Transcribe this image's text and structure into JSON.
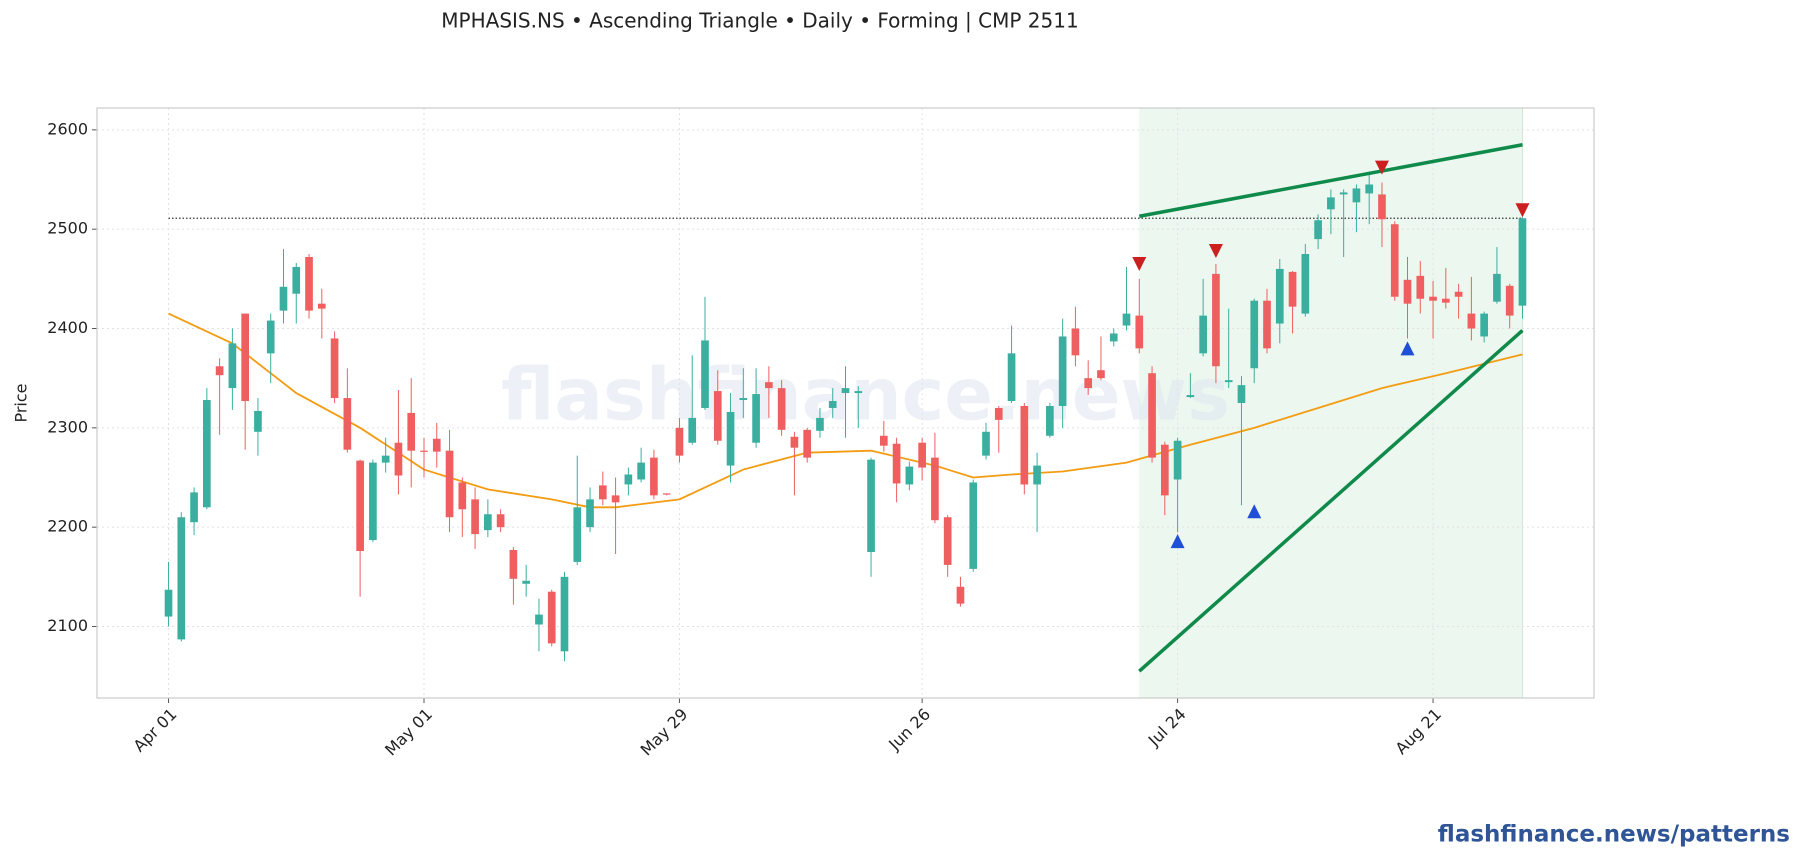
{
  "chart_data": {
    "type": "candlestick",
    "title": "MPHASIS.NS  •  Ascending Triangle  •  Daily  •  Forming  |  CMP 2511",
    "y_label": "Price",
    "watermark": "flashfinance.news",
    "footer": "flashfinance.news/patterns",
    "xlim": [
      -5.6,
      111.6
    ],
    "xticks": [
      {
        "value": 0,
        "label": "Apr 01"
      },
      {
        "value": 20,
        "label": "May 01"
      },
      {
        "value": 40,
        "label": "May 29"
      },
      {
        "value": 59,
        "label": "Jun 26"
      },
      {
        "value": 79,
        "label": "Jul 24"
      },
      {
        "value": 99,
        "label": "Aug 21"
      }
    ],
    "ylim": [
      2028,
      2622
    ],
    "yticks": [
      2100,
      2200,
      2300,
      2400,
      2500,
      2600
    ],
    "grid": true,
    "up_color": "#3aaf9f",
    "down_color": "#ef5f5f",
    "open": [
      2110,
      2087,
      2205,
      2220,
      2362,
      2340,
      2415,
      2296,
      2375,
      2418,
      2435,
      2472,
      2425,
      2390,
      2330,
      2267,
      2187,
      2265,
      2285,
      2315,
      2277,
      2289,
      2277,
      2245,
      2228,
      2197,
      2213,
      2177,
      2143,
      2102,
      2135,
      2075,
      2165,
      2200,
      2242,
      2232,
      2243,
      2248,
      2270,
      2234,
      2300,
      2285,
      2320,
      2337,
      2262,
      2328,
      2285,
      2346,
      2340,
      2291,
      2298,
      2297,
      2320,
      2335,
      2335,
      2175,
      2292,
      2284,
      2243,
      2285,
      2270,
      2210,
      2140,
      2158,
      2272,
      2320,
      2327,
      2322,
      2243,
      2292,
      2322,
      2400,
      2350,
      2358,
      2387,
      2403,
      2413,
      2355,
      2283,
      2248,
      2331,
      2375,
      2455,
      2346,
      2325,
      2360,
      2428,
      2405,
      2457,
      2415,
      2490,
      2520,
      2535,
      2527,
      2536,
      2535,
      2505,
      2449,
      2453,
      2432,
      2430,
      2437,
      2415,
      2392,
      2427,
      2443,
      2423
    ],
    "high": [
      2165,
      2215,
      2240,
      2340,
      2370,
      2400,
      2415,
      2330,
      2415,
      2480,
      2466,
      2475,
      2440,
      2397,
      2360,
      2268,
      2268,
      2290,
      2338,
      2350,
      2290,
      2305,
      2298,
      2250,
      2240,
      2228,
      2218,
      2180,
      2162,
      2128,
      2137,
      2155,
      2272,
      2240,
      2256,
      2250,
      2260,
      2280,
      2278,
      2234,
      2310,
      2373,
      2432,
      2358,
      2335,
      2360,
      2360,
      2362,
      2348,
      2296,
      2300,
      2320,
      2340,
      2362,
      2342,
      2270,
      2307,
      2290,
      2266,
      2290,
      2295,
      2212,
      2150,
      2248,
      2305,
      2322,
      2403,
      2325,
      2275,
      2325,
      2410,
      2422,
      2368,
      2392,
      2400,
      2462,
      2450,
      2362,
      2286,
      2290,
      2355,
      2450,
      2465,
      2420,
      2352,
      2430,
      2440,
      2470,
      2458,
      2485,
      2515,
      2540,
      2540,
      2545,
      2558,
      2547,
      2508,
      2472,
      2468,
      2448,
      2461,
      2445,
      2452,
      2417,
      2482,
      2445,
      2512
    ],
    "low": [
      2100,
      2085,
      2192,
      2218,
      2293,
      2318,
      2278,
      2272,
      2345,
      2405,
      2405,
      2410,
      2390,
      2325,
      2275,
      2130,
      2185,
      2255,
      2233,
      2240,
      2250,
      2260,
      2195,
      2190,
      2178,
      2190,
      2195,
      2122,
      2130,
      2075,
      2080,
      2065,
      2162,
      2195,
      2222,
      2173,
      2232,
      2245,
      2228,
      2232,
      2265,
      2283,
      2318,
      2283,
      2245,
      2310,
      2280,
      2310,
      2292,
      2232,
      2265,
      2290,
      2310,
      2290,
      2300,
      2150,
      2276,
      2225,
      2237,
      2247,
      2204,
      2150,
      2120,
      2155,
      2268,
      2275,
      2325,
      2233,
      2195,
      2290,
      2300,
      2362,
      2333,
      2348,
      2382,
      2398,
      2375,
      2265,
      2212,
      2195,
      2330,
      2372,
      2345,
      2340,
      2222,
      2345,
      2375,
      2385,
      2395,
      2412,
      2480,
      2495,
      2472,
      2497,
      2505,
      2482,
      2428,
      2390,
      2415,
      2390,
      2420,
      2410,
      2388,
      2386,
      2425,
      2400,
      2410
    ],
    "close": [
      2137,
      2210,
      2235,
      2328,
      2353,
      2385,
      2327,
      2317,
      2408,
      2442,
      2462,
      2418,
      2420,
      2330,
      2278,
      2176,
      2265,
      2272,
      2252,
      2277,
      2276,
      2276,
      2210,
      2218,
      2193,
      2213,
      2200,
      2148,
      2146,
      2112,
      2083,
      2150,
      2220,
      2228,
      2228,
      2225,
      2253,
      2265,
      2232,
      2233,
      2272,
      2310,
      2388,
      2287,
      2316,
      2330,
      2334,
      2340,
      2298,
      2280,
      2270,
      2310,
      2327,
      2340,
      2337,
      2268,
      2282,
      2244,
      2261,
      2260,
      2207,
      2162,
      2123,
      2245,
      2296,
      2308,
      2375,
      2243,
      2262,
      2322,
      2392,
      2373,
      2340,
      2350,
      2395,
      2415,
      2380,
      2270,
      2232,
      2287,
      2333,
      2413,
      2362,
      2348,
      2343,
      2428,
      2380,
      2460,
      2422,
      2475,
      2509,
      2532,
      2537,
      2541,
      2545,
      2510,
      2432,
      2425,
      2430,
      2428,
      2426,
      2432,
      2400,
      2415,
      2455,
      2413,
      2511
    ],
    "moving_average": {
      "color": "#f39c12",
      "x": [
        0,
        5,
        10,
        15,
        20,
        25,
        30,
        33,
        35,
        40,
        45,
        50,
        55,
        60,
        63,
        66,
        70,
        75,
        80,
        85,
        90,
        95,
        100,
        106
      ],
      "values": [
        2415,
        2385,
        2335,
        2300,
        2258,
        2238,
        2228,
        2220,
        2220,
        2228,
        2258,
        2275,
        2277,
        2262,
        2250,
        2253,
        2256,
        2265,
        2283,
        2300,
        2320,
        2340,
        2355,
        2374
      ]
    },
    "cmp_line": 2511,
    "pattern_window": [
      76,
      106
    ],
    "trendlines": [
      {
        "color": "#0f8a4a",
        "x": [
          76,
          106
        ],
        "values": [
          2513,
          2585
        ]
      },
      {
        "color": "#0f8a4a",
        "x": [
          76,
          106
        ],
        "values": [
          2055,
          2398
        ]
      }
    ],
    "pivot_highs": {
      "color": "#cc1f1f",
      "x": [
        76,
        82,
        95,
        106
      ],
      "values": [
        2465,
        2478,
        2562,
        2519
      ]
    },
    "pivot_lows": {
      "color": "#1f4fd6",
      "x": [
        79,
        85,
        97
      ],
      "values": [
        2186,
        2216,
        2380
      ]
    }
  }
}
